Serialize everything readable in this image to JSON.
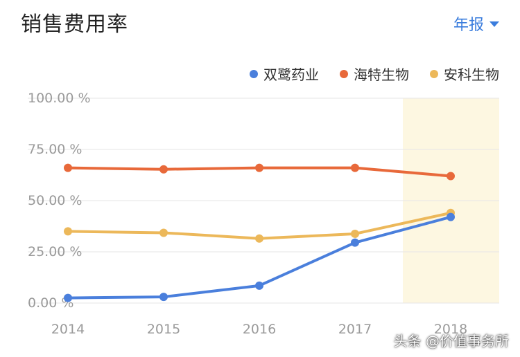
{
  "header": {
    "title": "销售费用率",
    "period_label": "年报",
    "period_icon": "caret-down-icon"
  },
  "colors": {
    "accent": "#3b7ddd",
    "highlight_band": "#fdf7e1"
  },
  "watermark": "头条 @价值事务所",
  "chart_data": {
    "type": "line",
    "title": "销售费用率",
    "xlabel": "",
    "ylabel": "",
    "x": [
      "2014",
      "2015",
      "2016",
      "2017",
      "2018"
    ],
    "ylim": [
      0,
      100
    ],
    "yticks": [
      "0.00 %",
      "25.00 %",
      "50.00 %",
      "75.00 %",
      "100.00 %"
    ],
    "ytick_values": [
      0,
      25,
      50,
      75,
      100
    ],
    "grid": true,
    "legend_position": "top-right",
    "highlight_category": "2018",
    "series": [
      {
        "name": "双鹭药业",
        "color": "#4a7fdc",
        "values": [
          2.5,
          3,
          8.5,
          29.5,
          42
        ]
      },
      {
        "name": "海特生物",
        "color": "#e8693a",
        "values": [
          66,
          65.3,
          66,
          66,
          62
        ]
      },
      {
        "name": "安科生物",
        "color": "#ecb85a",
        "values": [
          35,
          34.3,
          31.5,
          33.8,
          44
        ]
      }
    ]
  }
}
